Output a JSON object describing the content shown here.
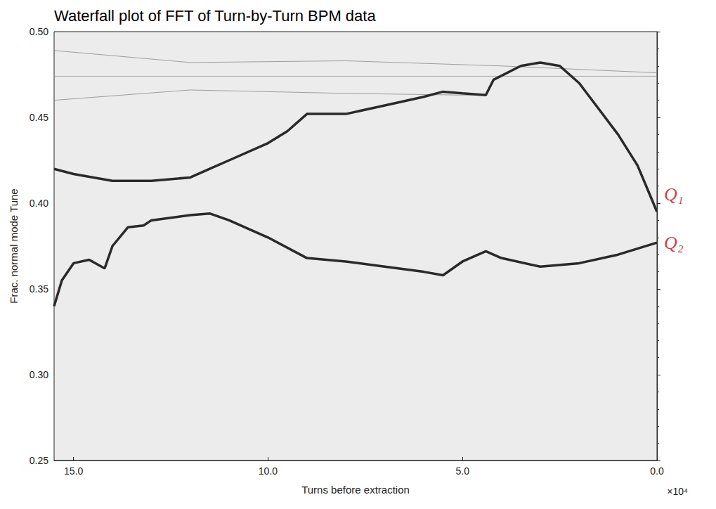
{
  "chart_data": {
    "type": "line",
    "title": "Waterfall plot of FFT of Turn-by-Turn BPM data",
    "x_label": "Turns before extraction",
    "y_label": "Frac. normal mode Tune",
    "xlim": [
      15.5,
      0
    ],
    "xticks": [
      {
        "value": 15,
        "label": "15.0"
      },
      {
        "value": 10,
        "label": "10.0"
      },
      {
        "value": 5,
        "label": "5.0"
      },
      {
        "value": 0,
        "label": "0.0"
      }
    ],
    "ylim": [
      0.25,
      0.5
    ],
    "yticks": [
      0.25,
      {
        "value": 0.3,
        "label": "0.30"
      },
      0.35,
      {
        "value": 0.4,
        "label": "0.40"
      },
      0.45,
      {
        "value": 0.5,
        "label": "0.50"
      }
    ],
    "grid": false,
    "annotations": [
      {
        "text": "Q₁",
        "x": 0,
        "y": 0.405,
        "color": "#e00000"
      },
      {
        "text": "Q₂",
        "x": 0,
        "y": 0.377,
        "color": "#e00000"
      },
      {
        "text": "×10⁴"
      }
    ],
    "series": [
      {
        "color": "#2a2a2a",
        "line_style": "solid",
        "x": [
          15.5,
          15.0,
          14.0,
          13.0,
          12.0,
          11.5,
          11.0,
          10.0,
          9.5,
          9.0,
          8.0,
          7.0,
          6.0,
          5.5,
          5.0,
          4.4,
          4.2,
          3.5,
          3.0,
          2.5,
          2.0,
          1.5,
          1.0,
          0.5,
          0.0
        ],
        "values": [
          0.42,
          0.417,
          0.413,
          0.413,
          0.415,
          0.42,
          0.425,
          0.435,
          0.442,
          0.452,
          0.452,
          0.457,
          0.462,
          0.465,
          0.464,
          0.463,
          0.472,
          0.48,
          0.482,
          0.48,
          0.47,
          0.455,
          0.44,
          0.422,
          0.395
        ]
      },
      {
        "color": "#2a2a2a",
        "line_style": "solid",
        "x": [
          15.5,
          15.3,
          15.0,
          14.6,
          14.2,
          14.0,
          13.6,
          13.2,
          13.0,
          12.0,
          11.5,
          11.0,
          10.0,
          9.0,
          8.0,
          7.0,
          6.0,
          5.5,
          5.0,
          4.4,
          4.0,
          3.0,
          2.0,
          1.0,
          0.0
        ],
        "values": [
          0.34,
          0.355,
          0.365,
          0.367,
          0.362,
          0.375,
          0.386,
          0.387,
          0.39,
          0.393,
          0.394,
          0.39,
          0.38,
          0.368,
          0.366,
          0.363,
          0.36,
          0.358,
          0.366,
          0.372,
          0.368,
          0.363,
          0.365,
          0.37,
          0.377
        ]
      },
      {
        "color": "#8a8a8a",
        "line_style": "faint",
        "x": [
          15.5,
          12.0,
          8.0,
          4.0,
          2.0,
          0.0
        ],
        "values": [
          0.489,
          0.482,
          0.483,
          0.48,
          0.478,
          0.476
        ]
      },
      {
        "color": "#8a8a8a",
        "line_style": "faint",
        "x": [
          15.5,
          12.0,
          8.0,
          5.0,
          4.4
        ],
        "values": [
          0.46,
          0.466,
          0.464,
          0.463,
          0.463
        ]
      },
      {
        "color": "#9a9a9a",
        "line_style": "faint",
        "x": [
          15.5,
          0.0
        ],
        "values": [
          0.474,
          0.474
        ]
      }
    ]
  }
}
